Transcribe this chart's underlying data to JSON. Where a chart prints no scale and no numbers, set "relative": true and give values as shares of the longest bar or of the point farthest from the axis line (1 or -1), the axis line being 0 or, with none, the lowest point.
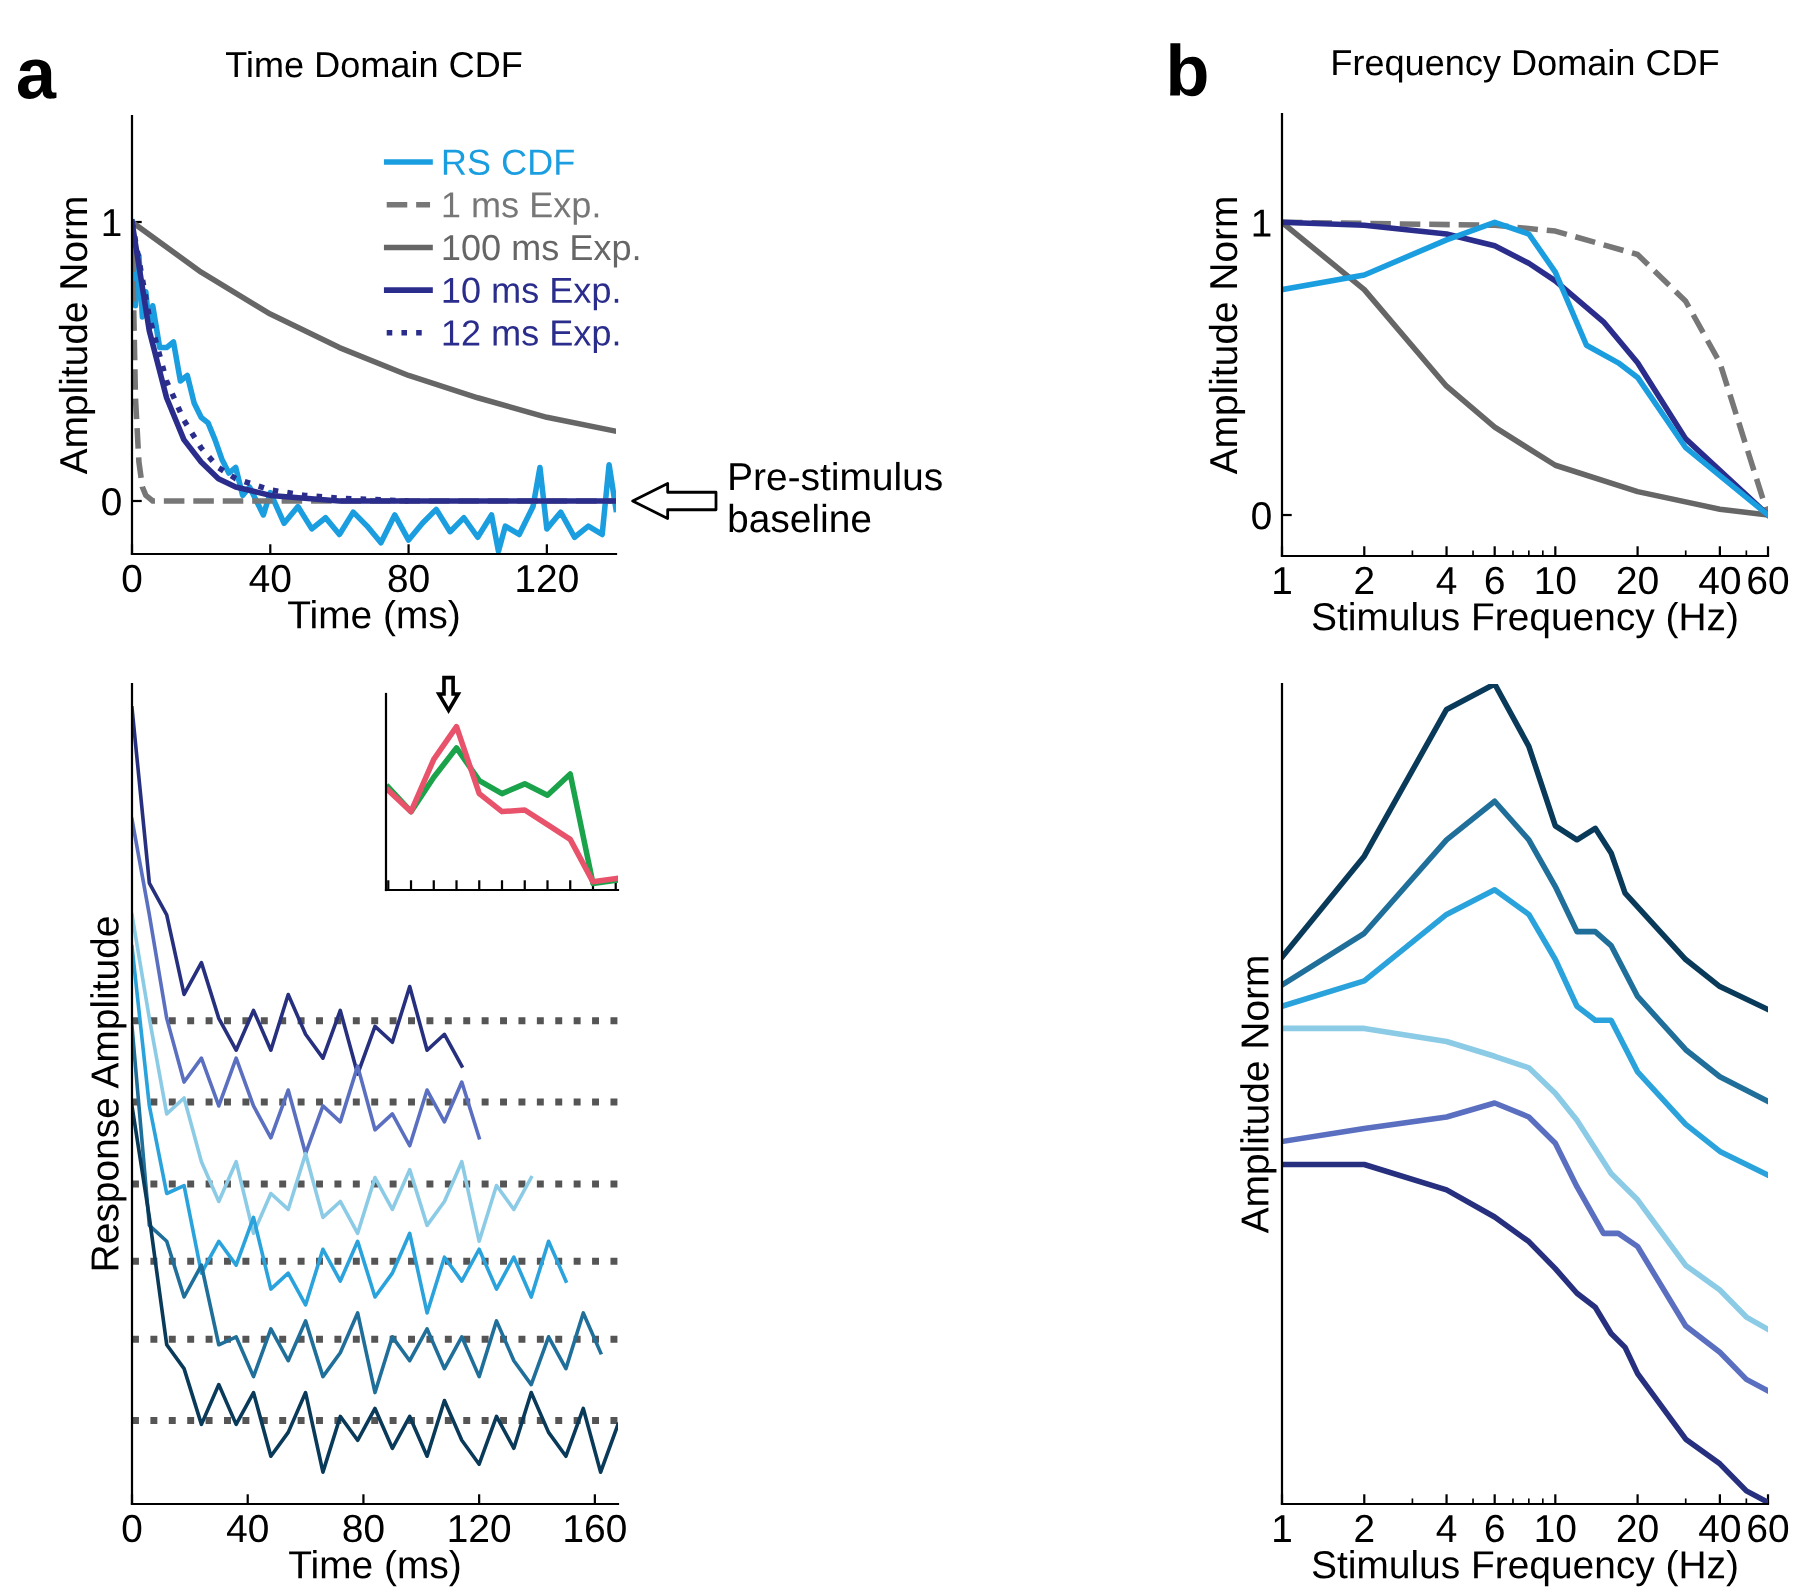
{
  "chart_data": [
    {
      "type": "line",
      "title": "Time Domain CDF",
      "xlabel": "Time (ms)",
      "ylabel": "Amplitude Norm",
      "xlim": [
        0,
        140
      ],
      "xticks": [
        0,
        40,
        80,
        120
      ],
      "ylim": [
        -0.19,
        1.38
      ],
      "yticks": [
        0,
        1
      ],
      "legend": "top right",
      "annotations": [
        "a",
        {
          "text": "Pre-stimulus\nbaseline",
          "x": 140,
          "y": 0
        }
      ],
      "series": [
        {
          "name": "RS CDF",
          "color": "#1a9ee0",
          "x": [
            0,
            1,
            2,
            3,
            4,
            5,
            6,
            8,
            10,
            12,
            14,
            16,
            18,
            20,
            22,
            24,
            26,
            28,
            30,
            32,
            34,
            36,
            38,
            40,
            44,
            48,
            52,
            56,
            60,
            64,
            68,
            72,
            76,
            80,
            84,
            88,
            92,
            96,
            100,
            104,
            106,
            108,
            112,
            116,
            118,
            120,
            124,
            128,
            132,
            136,
            138,
            140
          ],
          "values": [
            1.0,
            0.7,
            0.88,
            0.66,
            0.75,
            0.62,
            0.7,
            0.55,
            0.55,
            0.57,
            0.43,
            0.45,
            0.35,
            0.3,
            0.28,
            0.22,
            0.15,
            0.1,
            0.12,
            0.02,
            0.05,
            0.0,
            -0.05,
            0.03,
            -0.08,
            -0.02,
            -0.1,
            -0.06,
            -0.12,
            -0.04,
            -0.09,
            -0.15,
            -0.05,
            -0.14,
            -0.08,
            -0.03,
            -0.11,
            -0.06,
            -0.13,
            -0.05,
            -0.18,
            -0.09,
            -0.12,
            -0.02,
            0.12,
            -0.1,
            -0.04,
            -0.13,
            -0.09,
            -0.12,
            0.13,
            -0.03
          ]
        },
        {
          "name": "1 ms Exp.",
          "color": "#777777",
          "line_style": "dashed",
          "x": [
            0,
            1,
            2,
            3,
            4,
            5,
            6,
            10,
            140
          ],
          "values": [
            1,
            0.37,
            0.14,
            0.05,
            0.02,
            0.01,
            0,
            0,
            0
          ]
        },
        {
          "name": "100 ms Exp.",
          "color": "#666666",
          "x": [
            0,
            20,
            40,
            60,
            80,
            100,
            120,
            140
          ],
          "values": [
            1,
            0.82,
            0.67,
            0.55,
            0.45,
            0.37,
            0.3,
            0.25
          ]
        },
        {
          "name": "10 ms Exp.",
          "color": "#2b2d8c",
          "x": [
            0,
            5,
            10,
            15,
            20,
            25,
            30,
            40,
            50,
            60,
            80,
            100,
            120,
            140
          ],
          "values": [
            1,
            0.61,
            0.37,
            0.22,
            0.14,
            0.08,
            0.05,
            0.02,
            0.01,
            0,
            0,
            0,
            0,
            0
          ]
        },
        {
          "name": "12 ms Exp.",
          "color": "#2b2d8c",
          "line_style": "dotted",
          "x": [
            0,
            5,
            10,
            15,
            20,
            25,
            30,
            40,
            50,
            60,
            80
          ],
          "values": [
            1,
            0.66,
            0.43,
            0.29,
            0.19,
            0.12,
            0.08,
            0.04,
            0.02,
            0.01,
            0
          ]
        }
      ]
    },
    {
      "type": "line",
      "title": "Frequency Domain CDF",
      "xlabel": "Stimulus Frequency (Hz)",
      "ylabel": "Amplitude Norm",
      "log": "x",
      "xlim": [
        1,
        60
      ],
      "xticks": [
        1,
        2,
        4,
        6,
        10,
        20,
        40,
        60
      ],
      "ylim": [
        -0.14,
        1.37
      ],
      "yticks": [
        0,
        1
      ],
      "annotations": [
        "b"
      ],
      "series": [
        {
          "color": "#666666",
          "x": [
            1,
            2,
            4,
            6,
            10,
            20,
            40,
            60
          ],
          "values": [
            1,
            0.77,
            0.44,
            0.3,
            0.17,
            0.08,
            0.02,
            0
          ]
        },
        {
          "color": "#777777",
          "line_style": "dashed",
          "x": [
            1,
            6,
            10,
            20,
            30,
            40,
            60
          ],
          "values": [
            1,
            0.99,
            0.97,
            0.89,
            0.73,
            0.52,
            0
          ]
        },
        {
          "color": "#2b2d8c",
          "x": [
            1,
            2,
            4,
            6,
            8,
            10,
            15,
            20,
            30,
            60
          ],
          "values": [
            1.0,
            0.99,
            0.96,
            0.92,
            0.86,
            0.8,
            0.66,
            0.52,
            0.26,
            0
          ]
        },
        {
          "color": "#1a9ee0",
          "x": [
            1,
            2,
            4,
            6,
            8,
            10,
            13,
            17,
            20,
            30,
            60
          ],
          "values": [
            0.77,
            0.82,
            0.94,
            1.0,
            0.96,
            0.83,
            0.58,
            0.52,
            0.47,
            0.23,
            0
          ]
        }
      ]
    },
    {
      "type": "line",
      "xlabel": "Time (ms)",
      "ylabel": "Response Amplitude",
      "relative": true,
      "xlim": [
        0,
        168
      ],
      "xticks": [
        0,
        40,
        80,
        120,
        160
      ],
      "ref_lines": [
        {
          "axis": "y",
          "value": 0.607,
          "color": "#555555",
          "line_style": "dotted"
        },
        {
          "axis": "y",
          "value": 0.505,
          "color": "#555555",
          "line_style": "dotted"
        },
        {
          "axis": "y",
          "value": 0.402,
          "color": "#555555",
          "line_style": "dotted"
        },
        {
          "axis": "y",
          "value": 0.305,
          "color": "#555555",
          "line_style": "dotted"
        },
        {
          "axis": "y",
          "value": 0.207,
          "color": "#555555",
          "line_style": "dotted"
        },
        {
          "axis": "y",
          "value": 0.105,
          "color": "#555555",
          "line_style": "dotted"
        }
      ],
      "series": [
        {
          "color": "#26307f",
          "x": [
            0,
            6,
            12,
            18,
            24,
            30,
            36,
            42,
            48,
            54,
            60,
            66,
            72,
            78,
            84,
            90,
            96,
            102,
            108,
            114
          ],
          "values": [
            1.0,
            0.78,
            0.74,
            0.64,
            0.68,
            0.61,
            0.57,
            0.62,
            0.57,
            0.64,
            0.59,
            0.56,
            0.62,
            0.54,
            0.6,
            0.58,
            0.65,
            0.57,
            0.59,
            0.55
          ]
        },
        {
          "color": "#5a6fc0",
          "x": [
            0,
            6,
            12,
            18,
            24,
            30,
            36,
            42,
            48,
            54,
            60,
            66,
            72,
            78,
            84,
            90,
            96,
            102,
            108,
            114,
            120
          ],
          "values": [
            0.86,
            0.74,
            0.61,
            0.53,
            0.56,
            0.5,
            0.56,
            0.5,
            0.46,
            0.52,
            0.44,
            0.5,
            0.48,
            0.55,
            0.47,
            0.49,
            0.45,
            0.52,
            0.48,
            0.53,
            0.46
          ]
        },
        {
          "color": "#8ccbe6",
          "x": [
            0,
            6,
            12,
            18,
            24,
            30,
            36,
            42,
            48,
            54,
            60,
            66,
            72,
            78,
            84,
            90,
            96,
            102,
            108,
            114,
            120,
            126,
            132,
            138
          ],
          "values": [
            0.74,
            0.61,
            0.49,
            0.51,
            0.43,
            0.38,
            0.43,
            0.34,
            0.39,
            0.37,
            0.44,
            0.36,
            0.38,
            0.34,
            0.41,
            0.37,
            0.42,
            0.35,
            0.38,
            0.43,
            0.33,
            0.4,
            0.37,
            0.41
          ]
        },
        {
          "color": "#2aa3dc",
          "x": [
            0,
            6,
            12,
            18,
            24,
            30,
            36,
            42,
            48,
            54,
            60,
            66,
            72,
            78,
            84,
            90,
            96,
            102,
            108,
            114,
            120,
            126,
            132,
            138,
            144,
            150
          ],
          "values": [
            0.7,
            0.5,
            0.39,
            0.4,
            0.29,
            0.33,
            0.3,
            0.36,
            0.27,
            0.29,
            0.25,
            0.32,
            0.28,
            0.33,
            0.26,
            0.29,
            0.34,
            0.24,
            0.31,
            0.28,
            0.32,
            0.27,
            0.31,
            0.26,
            0.33,
            0.28
          ]
        },
        {
          "color": "#1f6f9a",
          "x": [
            0,
            6,
            12,
            18,
            24,
            30,
            36,
            42,
            48,
            54,
            60,
            66,
            72,
            78,
            84,
            90,
            96,
            102,
            108,
            114,
            120,
            126,
            132,
            138,
            144,
            150,
            156,
            162
          ],
          "values": [
            0.6,
            0.35,
            0.33,
            0.26,
            0.3,
            0.2,
            0.21,
            0.16,
            0.22,
            0.18,
            0.23,
            0.16,
            0.19,
            0.24,
            0.14,
            0.21,
            0.18,
            0.22,
            0.17,
            0.21,
            0.16,
            0.23,
            0.18,
            0.15,
            0.21,
            0.17,
            0.24,
            0.19
          ]
        },
        {
          "color": "#0a3a5a",
          "x": [
            0,
            6,
            12,
            18,
            24,
            30,
            36,
            42,
            48,
            54,
            60,
            66,
            72,
            78,
            84,
            90,
            96,
            102,
            108,
            114,
            120,
            126,
            132,
            138,
            144,
            150,
            156,
            162,
            168
          ],
          "values": [
            0.5,
            0.36,
            0.2,
            0.17,
            0.1,
            0.15,
            0.1,
            0.14,
            0.06,
            0.09,
            0.14,
            0.04,
            0.11,
            0.08,
            0.12,
            0.07,
            0.11,
            0.06,
            0.13,
            0.08,
            0.05,
            0.11,
            0.07,
            0.14,
            0.09,
            0.06,
            0.12,
            0.04,
            0.1
          ]
        }
      ]
    },
    {
      "type": "line",
      "relative": true,
      "categories": [
        null,
        null,
        null,
        null,
        null,
        null,
        null,
        null,
        null,
        null,
        null
      ],
      "series": [
        {
          "color": "#1aa34a",
          "values": [
            0.63,
            0.48,
            0.69,
            0.87,
            0.67,
            0.59,
            0.65,
            0.58,
            0.71,
            0.04,
            0.06
          ]
        },
        {
          "color": "#e8536b",
          "values": [
            0.61,
            0.48,
            0.8,
            1.0,
            0.59,
            0.48,
            0.49,
            0.4,
            0.31,
            0.05,
            0.07
          ]
        }
      ]
    },
    {
      "type": "line",
      "xlabel": "Stimulus Frequency (Hz)",
      "ylabel": "Amplitude Norm",
      "relative": true,
      "log": "x",
      "xlim": [
        1,
        60
      ],
      "xticks": [
        1,
        2,
        4,
        6,
        10,
        20,
        40,
        60
      ],
      "series": [
        {
          "color": "#0a3a5a",
          "x": [
            1,
            2,
            4,
            6,
            8,
            10,
            12,
            14,
            16,
            18,
            30,
            40,
            60
          ],
          "values": [
            0.667,
            0.79,
            0.969,
            1.0,
            0.924,
            0.827,
            0.81,
            0.824,
            0.794,
            0.745,
            0.664,
            0.631,
            0.603
          ]
        },
        {
          "color": "#1f6f9a",
          "x": [
            1,
            2,
            4,
            6,
            8,
            10,
            12,
            14,
            16,
            20,
            30,
            40,
            60
          ],
          "values": [
            0.633,
            0.696,
            0.81,
            0.857,
            0.81,
            0.753,
            0.698,
            0.698,
            0.681,
            0.619,
            0.554,
            0.521,
            0.491
          ]
        },
        {
          "color": "#2aa3dc",
          "x": [
            1,
            2,
            4,
            6,
            8,
            10,
            12,
            14,
            16,
            20,
            30,
            40,
            60
          ],
          "values": [
            0.607,
            0.638,
            0.719,
            0.749,
            0.719,
            0.664,
            0.607,
            0.59,
            0.59,
            0.527,
            0.463,
            0.43,
            0.401
          ]
        },
        {
          "color": "#8ccbe6",
          "x": [
            1,
            2,
            4,
            6,
            8,
            10,
            12,
            16,
            20,
            30,
            40,
            50,
            60
          ],
          "values": [
            0.58,
            0.58,
            0.564,
            0.546,
            0.532,
            0.501,
            0.468,
            0.403,
            0.371,
            0.291,
            0.261,
            0.228,
            0.213
          ]
        },
        {
          "color": "#5a6fc0",
          "x": [
            1,
            2,
            4,
            6,
            8,
            10,
            12,
            15,
            17,
            20,
            30,
            40,
            50,
            60
          ],
          "values": [
            0.442,
            0.458,
            0.472,
            0.489,
            0.472,
            0.44,
            0.387,
            0.33,
            0.33,
            0.314,
            0.217,
            0.185,
            0.152,
            0.138
          ]
        },
        {
          "color": "#26307f",
          "x": [
            1,
            2,
            4,
            6,
            8,
            10,
            12,
            14,
            16,
            18,
            20,
            30,
            40,
            50,
            60
          ],
          "values": [
            0.414,
            0.414,
            0.383,
            0.35,
            0.32,
            0.287,
            0.257,
            0.24,
            0.208,
            0.191,
            0.159,
            0.079,
            0.049,
            0.016,
            0.002
          ]
        }
      ]
    }
  ]
}
